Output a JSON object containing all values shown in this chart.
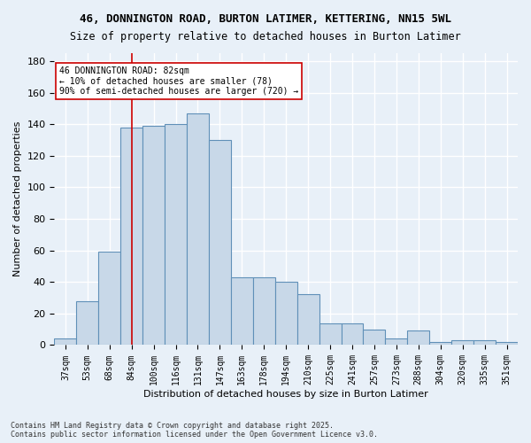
{
  "title1": "46, DONNINGTON ROAD, BURTON LATIMER, KETTERING, NN15 5WL",
  "title2": "Size of property relative to detached houses in Burton Latimer",
  "xlabel": "Distribution of detached houses by size in Burton Latimer",
  "ylabel": "Number of detached properties",
  "categories": [
    "37sqm",
    "53sqm",
    "68sqm",
    "84sqm",
    "100sqm",
    "116sqm",
    "131sqm",
    "147sqm",
    "163sqm",
    "178sqm",
    "194sqm",
    "210sqm",
    "225sqm",
    "241sqm",
    "257sqm",
    "273sqm",
    "288sqm",
    "304sqm",
    "320sqm",
    "335sqm",
    "351sqm"
  ],
  "values": [
    4,
    28,
    59,
    138,
    139,
    140,
    147,
    130,
    43,
    43,
    40,
    32,
    14,
    14,
    10,
    4,
    9,
    2,
    3,
    3,
    2
  ],
  "bar_color": "#c8d8e8",
  "bar_edge_color": "#6090b8",
  "vline_category": "84sqm",
  "vline_color": "#cc0000",
  "annotation_text": "46 DONNINGTON ROAD: 82sqm\n← 10% of detached houses are smaller (78)\n90% of semi-detached houses are larger (720) →",
  "annotation_box_color": "#ffffff",
  "annotation_box_edge": "#cc0000",
  "ylim": [
    0,
    185
  ],
  "yticks": [
    0,
    20,
    40,
    60,
    80,
    100,
    120,
    140,
    160,
    180
  ],
  "background_color": "#e8f0f8",
  "grid_color": "#ffffff",
  "footer": "Contains HM Land Registry data © Crown copyright and database right 2025.\nContains public sector information licensed under the Open Government Licence v3.0."
}
